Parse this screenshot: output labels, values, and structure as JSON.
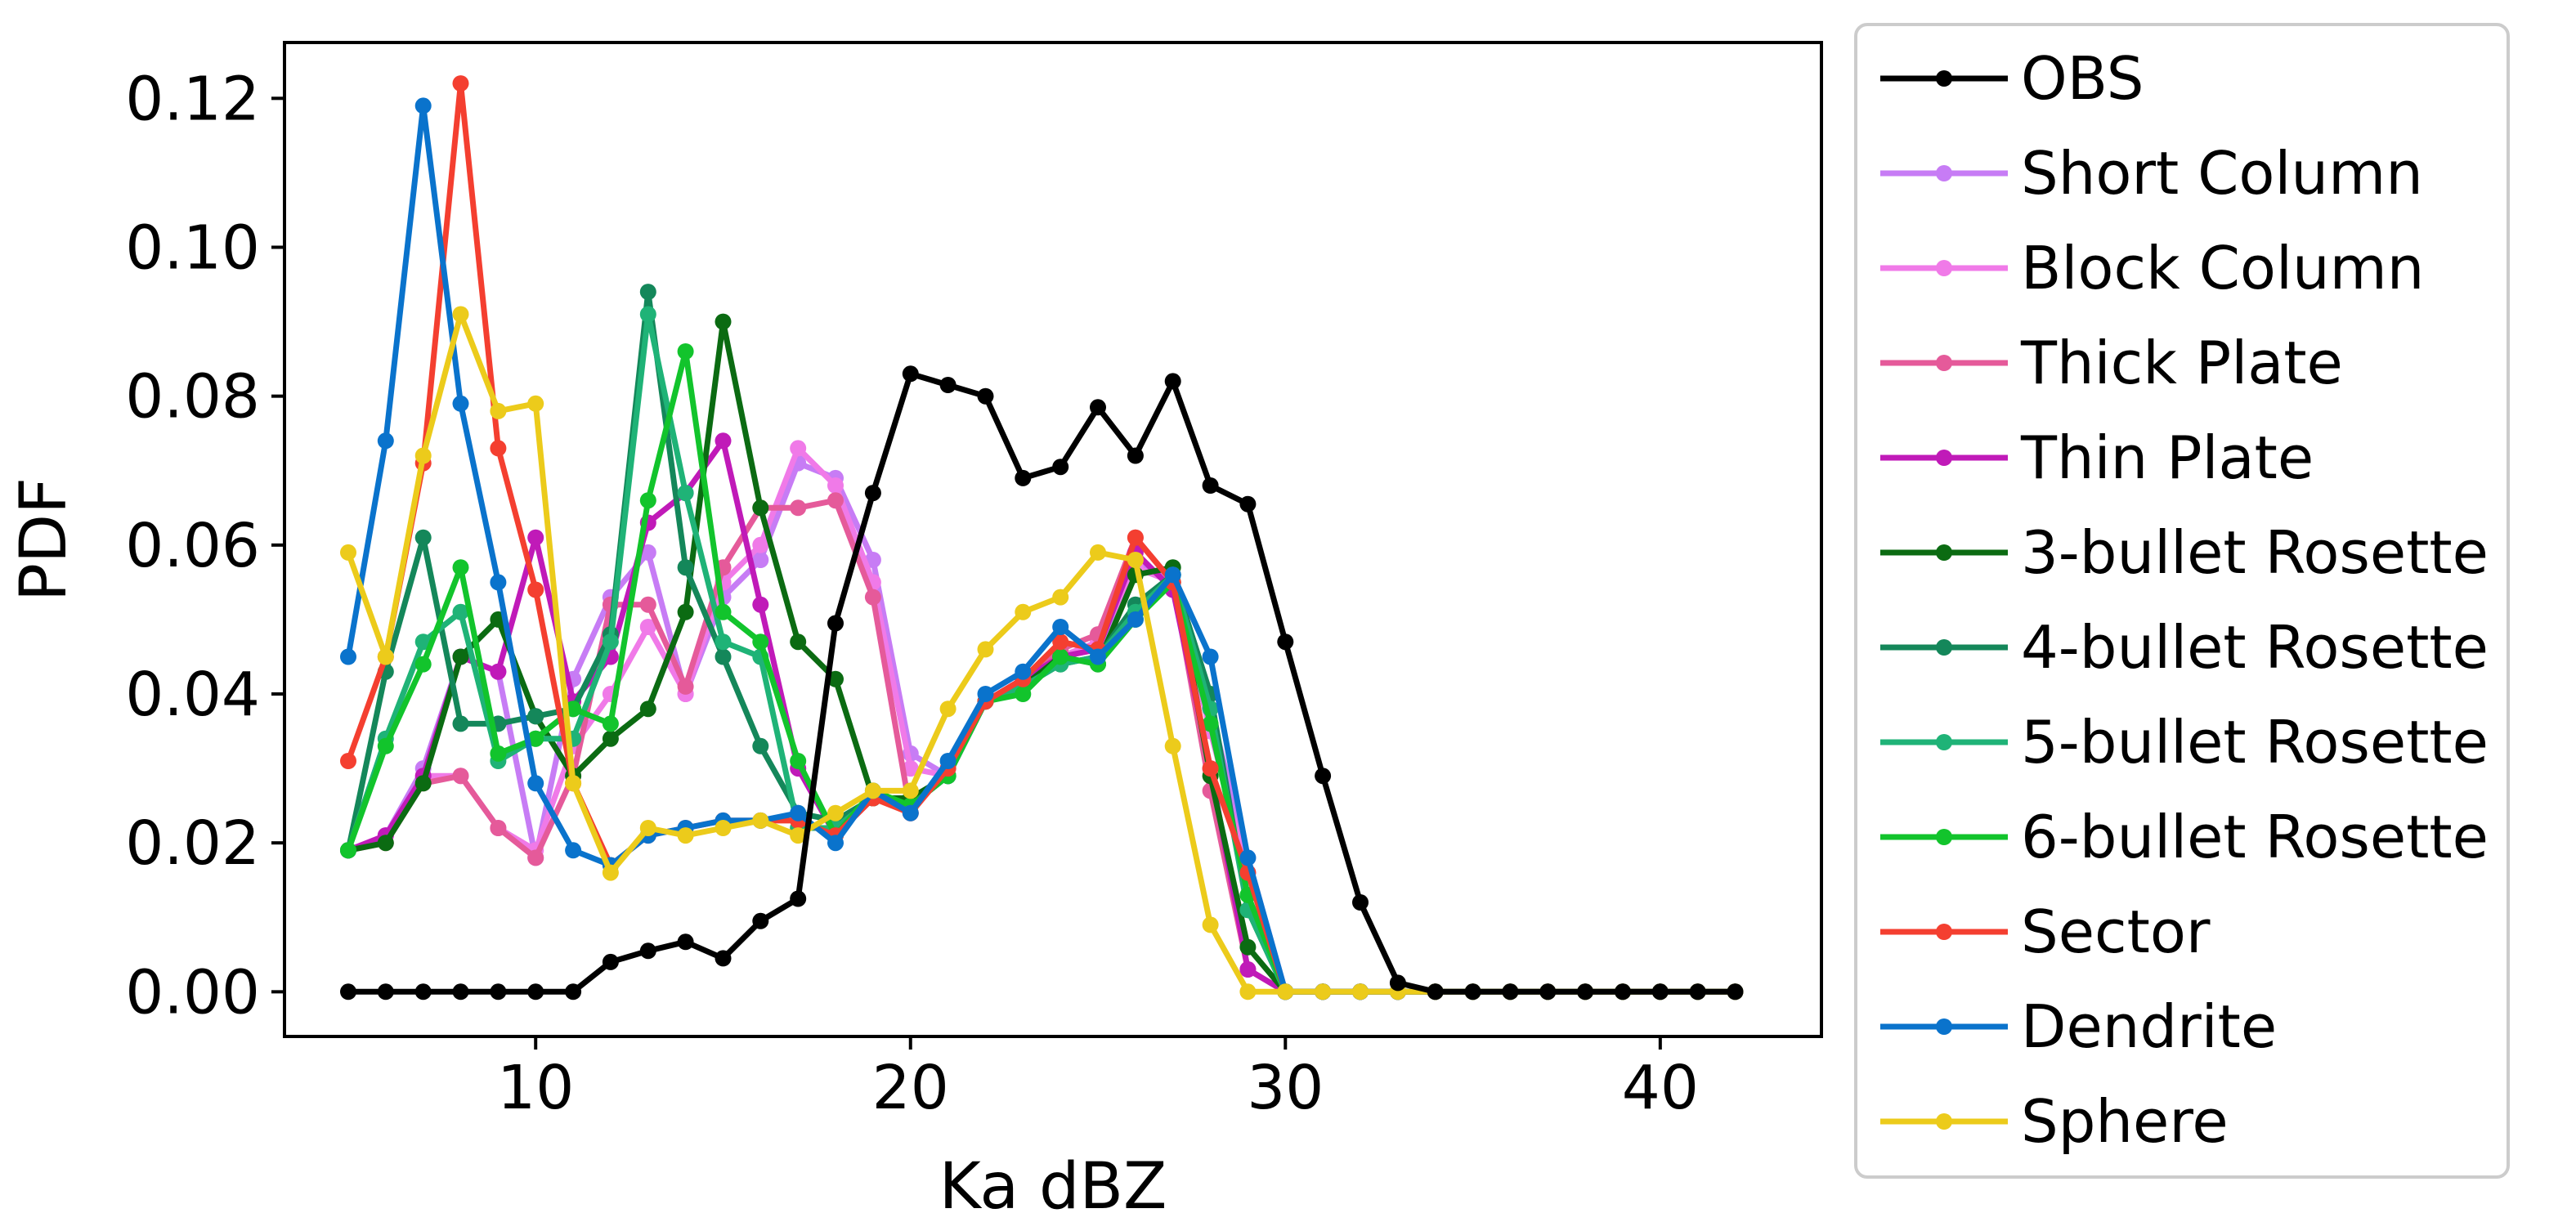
{
  "chart_data": {
    "type": "line",
    "title": "",
    "xlabel": "Ka dBZ",
    "ylabel": "PDF",
    "xlim": [
      3.3,
      44.3
    ],
    "ylim": [
      -0.006,
      0.1275
    ],
    "xticks": [
      10,
      20,
      30,
      40
    ],
    "xtick_labels": [
      "10",
      "20",
      "30",
      "40"
    ],
    "yticks": [
      0.0,
      0.02,
      0.04,
      0.06,
      0.08,
      0.1,
      0.12
    ],
    "ytick_labels": [
      "0.00",
      "0.02",
      "0.04",
      "0.06",
      "0.08",
      "0.10",
      "0.12"
    ],
    "grid": false,
    "legend_position": "outside-right",
    "x": [
      5,
      6,
      7,
      8,
      9,
      10,
      11,
      12,
      13,
      14,
      15,
      16,
      17,
      18,
      19,
      20,
      21,
      22,
      23,
      24,
      25,
      26,
      27,
      28,
      29,
      30,
      31,
      32,
      33,
      34,
      35,
      36,
      37,
      38,
      39,
      40,
      41,
      42
    ],
    "series": [
      {
        "name": "Short Column",
        "color": "#c77cf5",
        "values": [
          0.019,
          0.021,
          0.03,
          0.045,
          0.043,
          0.018,
          0.042,
          0.053,
          0.059,
          0.04,
          0.053,
          0.058,
          0.071,
          0.069,
          0.058,
          0.032,
          0.029,
          0.039,
          0.042,
          0.045,
          0.046,
          0.058,
          0.055,
          0.038,
          0.018,
          0.0,
          0.0,
          0.0,
          0.0,
          0.0,
          0.0,
          0.0,
          0.0,
          0.0,
          0.0,
          0.0,
          0.0,
          0.0
        ]
      },
      {
        "name": "Block Column",
        "color": "#f07ae8",
        "values": [
          0.019,
          0.021,
          0.029,
          0.029,
          0.022,
          0.019,
          0.033,
          0.04,
          0.049,
          0.04,
          0.055,
          0.06,
          0.073,
          0.068,
          0.055,
          0.03,
          0.029,
          0.039,
          0.042,
          0.045,
          0.047,
          0.057,
          0.055,
          0.035,
          0.016,
          0.0,
          0.0,
          0.0,
          0.0,
          0.0,
          0.0,
          0.0,
          0.0,
          0.0,
          0.0,
          0.0,
          0.0,
          0.0
        ]
      },
      {
        "name": "Thick Plate",
        "color": "#e55a9a",
        "values": [
          0.019,
          0.02,
          0.028,
          0.029,
          0.022,
          0.018,
          0.029,
          0.052,
          0.052,
          0.041,
          0.057,
          0.065,
          0.065,
          0.066,
          0.053,
          0.024,
          0.03,
          0.039,
          0.042,
          0.046,
          0.048,
          0.061,
          0.055,
          0.027,
          0.003,
          0.0,
          0.0,
          0.0,
          0.0,
          0.0,
          0.0,
          0.0,
          0.0,
          0.0,
          0.0,
          0.0,
          0.0,
          0.0
        ]
      },
      {
        "name": "Thin Plate",
        "color": "#c01ab8",
        "values": [
          0.019,
          0.021,
          0.029,
          0.045,
          0.043,
          0.061,
          0.039,
          0.045,
          0.063,
          0.067,
          0.074,
          0.052,
          0.03,
          0.021,
          0.026,
          0.025,
          0.029,
          0.039,
          0.042,
          0.045,
          0.046,
          0.059,
          0.054,
          0.03,
          0.003,
          0.0,
          0.0,
          0.0,
          0.0,
          0.0,
          0.0,
          0.0,
          0.0,
          0.0,
          0.0,
          0.0,
          0.0,
          0.0
        ]
      },
      {
        "name": "3-bullet Rosette",
        "color": "#0b6b12",
        "values": [
          0.019,
          0.02,
          0.028,
          0.045,
          0.05,
          0.037,
          0.029,
          0.034,
          0.038,
          0.051,
          0.09,
          0.065,
          0.047,
          0.042,
          0.026,
          0.026,
          0.029,
          0.039,
          0.041,
          0.045,
          0.044,
          0.056,
          0.057,
          0.029,
          0.006,
          0.0,
          0.0,
          0.0,
          0.0,
          0.0,
          0.0,
          0.0,
          0.0,
          0.0,
          0.0,
          0.0,
          0.0,
          0.0
        ]
      },
      {
        "name": "4-bullet Rosette",
        "color": "#14875a",
        "values": [
          0.019,
          0.043,
          0.061,
          0.036,
          0.036,
          0.037,
          0.038,
          0.048,
          0.094,
          0.057,
          0.045,
          0.033,
          0.024,
          0.023,
          0.026,
          0.025,
          0.029,
          0.039,
          0.041,
          0.044,
          0.045,
          0.052,
          0.056,
          0.04,
          0.011,
          0.0,
          0.0,
          0.0,
          0.0,
          0.0,
          0.0,
          0.0,
          0.0,
          0.0,
          0.0,
          0.0,
          0.0,
          0.0
        ]
      },
      {
        "name": "5-bullet Rosette",
        "color": "#1fb377",
        "values": [
          0.019,
          0.034,
          0.047,
          0.051,
          0.031,
          0.034,
          0.034,
          0.047,
          0.091,
          0.067,
          0.047,
          0.045,
          0.022,
          0.022,
          0.026,
          0.025,
          0.029,
          0.039,
          0.041,
          0.044,
          0.045,
          0.051,
          0.056,
          0.038,
          0.011,
          0.0,
          0.0,
          0.0,
          0.0,
          0.0,
          0.0,
          0.0,
          0.0,
          0.0,
          0.0,
          0.0,
          0.0,
          0.0
        ]
      },
      {
        "name": "6-bullet Rosette",
        "color": "#12c42c",
        "values": [
          0.019,
          0.033,
          0.044,
          0.057,
          0.032,
          0.034,
          0.038,
          0.036,
          0.066,
          0.086,
          0.051,
          0.047,
          0.031,
          0.021,
          0.027,
          0.025,
          0.029,
          0.039,
          0.04,
          0.045,
          0.044,
          0.05,
          0.055,
          0.036,
          0.013,
          0.0,
          0.0,
          0.0,
          0.0,
          0.0,
          0.0,
          0.0,
          0.0,
          0.0,
          0.0,
          0.0,
          0.0,
          0.0
        ]
      },
      {
        "name": "Sector",
        "color": "#f43f30",
        "values": [
          0.031,
          0.045,
          0.071,
          0.122,
          0.073,
          0.054,
          0.028,
          0.017,
          0.021,
          0.022,
          0.023,
          0.023,
          0.023,
          0.021,
          0.026,
          0.024,
          0.03,
          0.039,
          0.042,
          0.047,
          0.046,
          0.061,
          0.055,
          0.03,
          0.016,
          0.0,
          0.0,
          0.0,
          0.0,
          0.0,
          0.0,
          0.0,
          0.0,
          0.0,
          0.0,
          0.0,
          0.0,
          0.0
        ]
      },
      {
        "name": "Dendrite",
        "color": "#0a73cc",
        "values": [
          0.045,
          0.074,
          0.119,
          0.079,
          0.055,
          0.028,
          0.019,
          0.017,
          0.021,
          0.022,
          0.023,
          0.023,
          0.024,
          0.02,
          0.027,
          0.024,
          0.031,
          0.04,
          0.043,
          0.049,
          0.045,
          0.05,
          0.056,
          0.045,
          0.018,
          0.0,
          0.0,
          0.0,
          0.0,
          0.0,
          0.0,
          0.0,
          0.0,
          0.0,
          0.0,
          0.0,
          0.0,
          0.0
        ]
      },
      {
        "name": "Sphere",
        "color": "#eccb1b",
        "values": [
          0.059,
          0.045,
          0.072,
          0.091,
          0.078,
          0.079,
          0.028,
          0.016,
          0.022,
          0.021,
          0.022,
          0.023,
          0.021,
          0.024,
          0.027,
          0.027,
          0.038,
          0.046,
          0.051,
          0.053,
          0.059,
          0.058,
          0.033,
          0.009,
          0.0,
          0.0,
          0.0,
          0.0,
          0.0,
          0.0,
          0.0,
          0.0,
          0.0,
          0.0,
          0.0,
          0.0,
          0.0,
          0.0
        ]
      },
      {
        "name": "OBS",
        "color": "#000000",
        "values": [
          0.0,
          0.0,
          0.0,
          0.0,
          0.0,
          0.0,
          0.0,
          0.004,
          0.0055,
          0.0067,
          0.0045,
          0.0095,
          0.0125,
          0.0495,
          0.067,
          0.083,
          0.0815,
          0.08,
          0.069,
          0.0705,
          0.0785,
          0.072,
          0.082,
          0.068,
          0.0655,
          0.047,
          0.029,
          0.012,
          0.0012,
          0.0,
          0.0,
          0.0,
          0.0,
          0.0,
          0.0,
          0.0,
          0.0,
          0.0
        ]
      }
    ],
    "legend": [
      "OBS",
      "Short Column",
      "Block Column",
      "Thick Plate",
      "Thin Plate",
      "3-bullet Rosette",
      "4-bullet Rosette",
      "5-bullet Rosette",
      "6-bullet Rosette",
      "Sector",
      "Dendrite",
      "Sphere"
    ]
  }
}
